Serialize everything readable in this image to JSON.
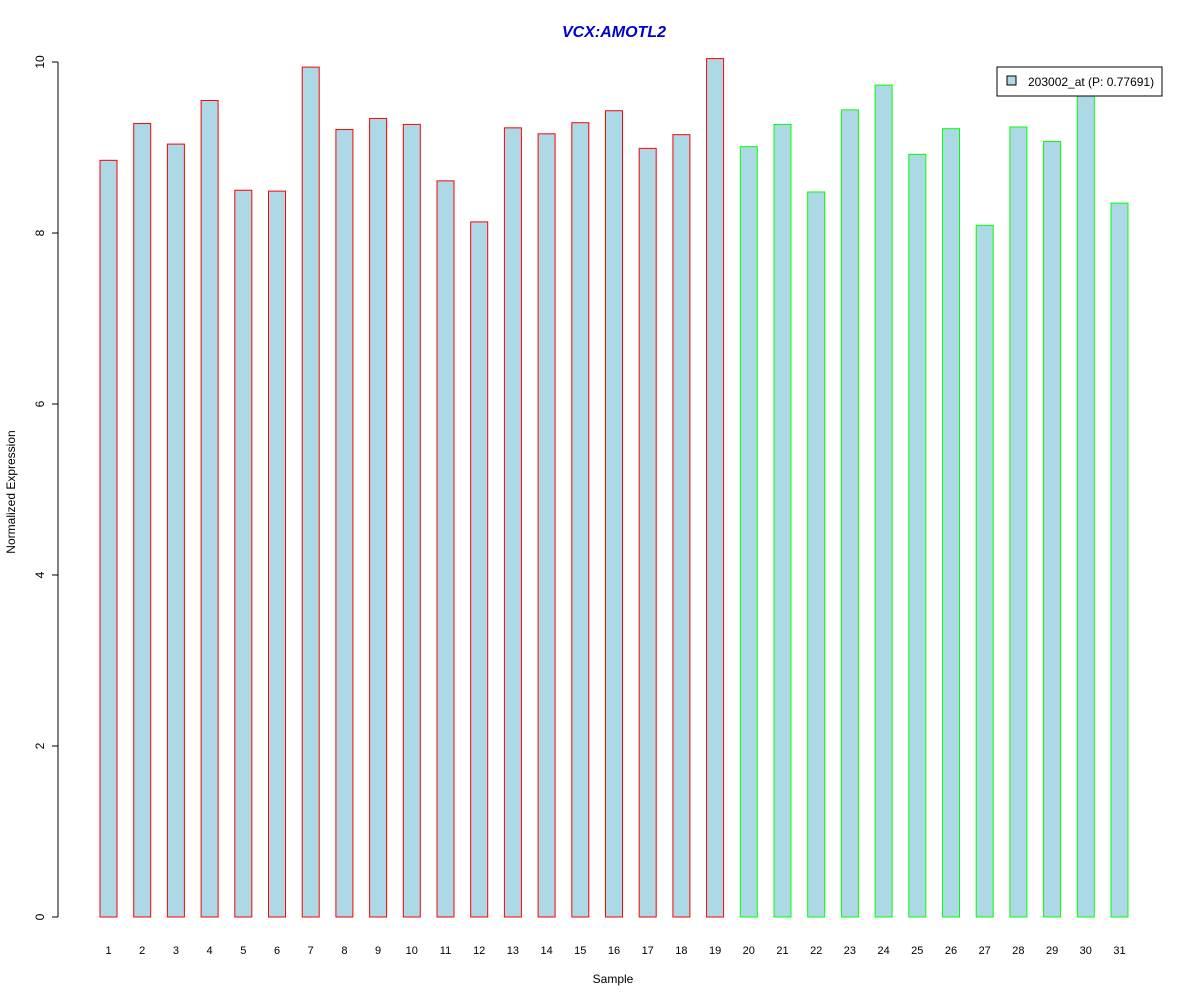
{
  "chart_data": {
    "type": "bar",
    "title": "VCX:AMOTL2",
    "xlabel": "Sample",
    "ylabel": "Normalized Expression",
    "ylim": [
      0,
      10
    ],
    "yticks": [
      0,
      2,
      4,
      6,
      8,
      10
    ],
    "grid": false,
    "legend": {
      "position": "top-right",
      "entries": [
        "203002_at (P: 0.77691)"
      ]
    },
    "categories": [
      "1",
      "2",
      "3",
      "4",
      "5",
      "6",
      "7",
      "8",
      "9",
      "10",
      "11",
      "12",
      "13",
      "14",
      "15",
      "16",
      "17",
      "18",
      "19",
      "20",
      "21",
      "22",
      "23",
      "24",
      "25",
      "26",
      "27",
      "28",
      "29",
      "30",
      "31"
    ],
    "series": [
      {
        "name": "203002_at (P: 0.77691)",
        "values": [
          8.85,
          9.28,
          9.04,
          9.55,
          8.5,
          8.49,
          9.94,
          9.21,
          9.34,
          9.27,
          8.61,
          8.13,
          9.23,
          9.16,
          9.29,
          9.43,
          8.99,
          9.15,
          10.04,
          9.01,
          9.27,
          8.48,
          9.44,
          9.73,
          8.92,
          9.22,
          8.09,
          9.24,
          9.07,
          9.63,
          8.35
        ],
        "groups": [
          "a",
          "a",
          "a",
          "a",
          "a",
          "a",
          "a",
          "a",
          "a",
          "a",
          "a",
          "a",
          "a",
          "a",
          "a",
          "a",
          "a",
          "a",
          "a",
          "b",
          "b",
          "b",
          "b",
          "b",
          "b",
          "b",
          "b",
          "b",
          "b",
          "b",
          "b"
        ]
      }
    ],
    "colors": {
      "fill": "#add8e6",
      "group_a_border": "#ff0000",
      "group_b_border": "#00ff00",
      "title": "#0000cd"
    }
  }
}
